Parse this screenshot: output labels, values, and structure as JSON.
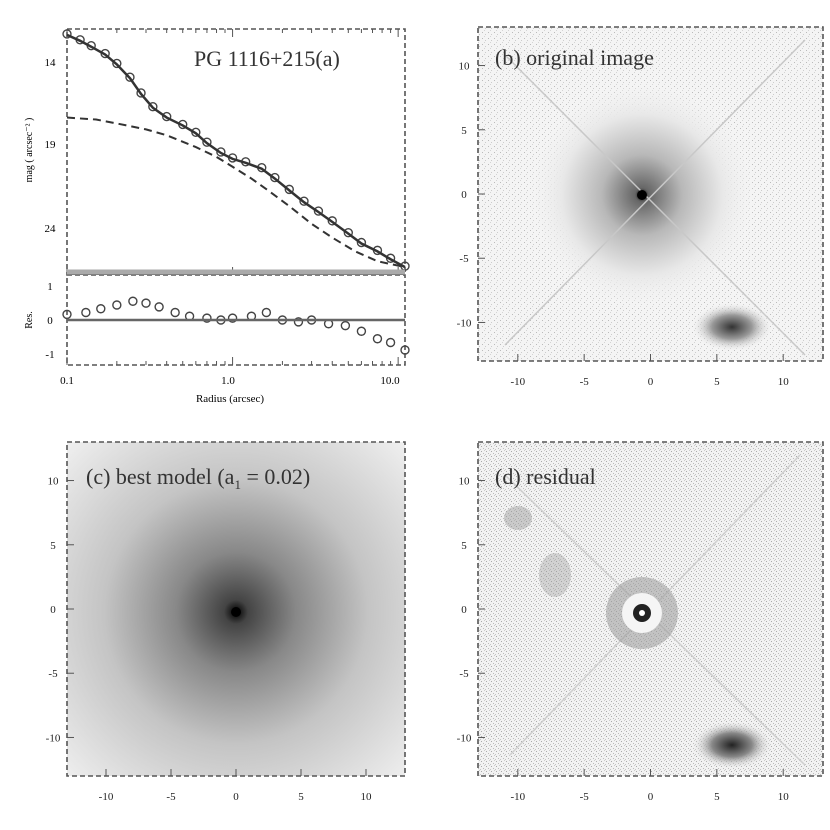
{
  "figure": {
    "panels": [
      {
        "id": "a",
        "title": "PG 1116+215(a)"
      },
      {
        "id": "b",
        "title": "(b) original image"
      },
      {
        "id": "c",
        "title_pre": "(c) best model (a",
        "title_sub": "1",
        "title_post": " = 0.02)"
      },
      {
        "id": "d",
        "title": "(d) residual"
      }
    ]
  },
  "chart_data": [
    {
      "type": "scatter",
      "panel": "a",
      "title": "PG 1116+215(a)",
      "xlabel": "Radius (arcsec)",
      "ylabel_top": "mag ( arcsec⁻² )",
      "ylabel_bottom": "Res.",
      "xscale": "log",
      "xlim": [
        0.1,
        11
      ],
      "xticks": [
        "0.1",
        "1.0",
        "10.0"
      ],
      "ylim_top": [
        26,
        13.5
      ],
      "yticks_top": [
        "14",
        "19",
        "24"
      ],
      "ylim_bottom": [
        -1.2,
        1.2
      ],
      "yticks_bottom": [
        "1",
        "0",
        "-1"
      ],
      "series": [
        {
          "style": "circles",
          "x": [
            0.1,
            0.12,
            0.14,
            0.17,
            0.2,
            0.24,
            0.28,
            0.33,
            0.4,
            0.5,
            0.6,
            0.7,
            0.85,
            1.0,
            1.2,
            1.5,
            1.8,
            2.2,
            2.7,
            3.3,
            4.0,
            5.0,
            6.0,
            7.5,
            9.0,
            11.0
          ],
          "y": [
            13.8,
            14.1,
            14.4,
            14.8,
            15.3,
            16.0,
            16.8,
            17.5,
            18.0,
            18.4,
            18.8,
            19.3,
            19.8,
            20.1,
            20.3,
            20.6,
            21.1,
            21.7,
            22.3,
            22.8,
            23.3,
            23.9,
            24.4,
            24.8,
            25.2,
            25.6
          ]
        },
        {
          "style": "solid",
          "x": [
            0.1,
            0.12,
            0.14,
            0.17,
            0.2,
            0.24,
            0.28,
            0.33,
            0.4,
            0.5,
            0.6,
            0.7,
            0.85,
            1.0,
            1.2,
            1.5,
            1.8,
            2.2,
            2.7,
            3.3,
            4.0,
            5.0,
            6.0,
            7.5,
            9.0,
            11.0
          ],
          "y": [
            13.8,
            14.1,
            14.4,
            14.8,
            15.3,
            16.0,
            16.8,
            17.5,
            18.0,
            18.4,
            18.8,
            19.3,
            19.8,
            20.1,
            20.3,
            20.6,
            21.1,
            21.7,
            22.3,
            22.8,
            23.3,
            23.9,
            24.4,
            24.8,
            25.2,
            25.6
          ]
        },
        {
          "style": "dashed",
          "x": [
            0.1,
            0.15,
            0.2,
            0.3,
            0.4,
            0.6,
            0.8,
            1.0,
            1.3,
            1.7,
            2.2,
            3.0,
            4.0,
            5.5,
            7.5,
            11.0
          ],
          "y": [
            18.0,
            18.1,
            18.3,
            18.6,
            18.9,
            19.5,
            20.0,
            20.5,
            21.1,
            21.8,
            22.5,
            23.4,
            24.1,
            24.8,
            25.3,
            25.6
          ]
        }
      ],
      "residuals": {
        "x": [
          0.1,
          0.13,
          0.16,
          0.2,
          0.25,
          0.3,
          0.36,
          0.45,
          0.55,
          0.7,
          0.85,
          1.0,
          1.3,
          1.6,
          2.0,
          2.5,
          3.0,
          3.8,
          4.8,
          6.0,
          7.5,
          9.0,
          11.0
        ],
        "y": [
          0.15,
          0.2,
          0.3,
          0.4,
          0.5,
          0.45,
          0.35,
          0.2,
          0.1,
          0.05,
          0.0,
          0.05,
          0.1,
          0.2,
          0.0,
          -0.05,
          0.0,
          -0.1,
          -0.15,
          -0.3,
          -0.5,
          -0.6,
          -0.8
        ]
      }
    },
    {
      "type": "heatmap",
      "panel": "b",
      "title": "(b) original image",
      "xlim": [
        -13,
        13
      ],
      "ylim": [
        -13,
        13
      ],
      "xticks": [
        -10,
        -5,
        0,
        5,
        10
      ],
      "yticks": [
        10,
        5,
        0,
        -5,
        -10
      ],
      "sources": [
        {
          "x": 0,
          "y": 0,
          "kind": "bright core with halo and diffraction spikes"
        },
        {
          "x": 7,
          "y": -10,
          "kind": "companion galaxy"
        }
      ]
    },
    {
      "type": "heatmap",
      "panel": "c",
      "title": "(c) best model (a1 = 0.02)",
      "xlim": [
        -13,
        13
      ],
      "ylim": [
        -13,
        13
      ],
      "xticks": [
        -10,
        -5,
        0,
        5,
        10
      ],
      "yticks": [
        10,
        5,
        0,
        -5,
        -10
      ],
      "sources": [
        {
          "x": 0,
          "y": 0,
          "kind": "smooth model"
        }
      ]
    },
    {
      "type": "heatmap",
      "panel": "d",
      "title": "(d) residual",
      "xlim": [
        -13,
        13
      ],
      "ylim": [
        -13,
        13
      ],
      "xticks": [
        -10,
        -5,
        0,
        5,
        10
      ],
      "yticks": [
        10,
        5,
        0,
        -5,
        -10
      ],
      "sources": [
        {
          "x": 0,
          "y": 0,
          "kind": "ring residual"
        },
        {
          "x": 7,
          "y": -10,
          "kind": "companion galaxy"
        }
      ]
    }
  ]
}
